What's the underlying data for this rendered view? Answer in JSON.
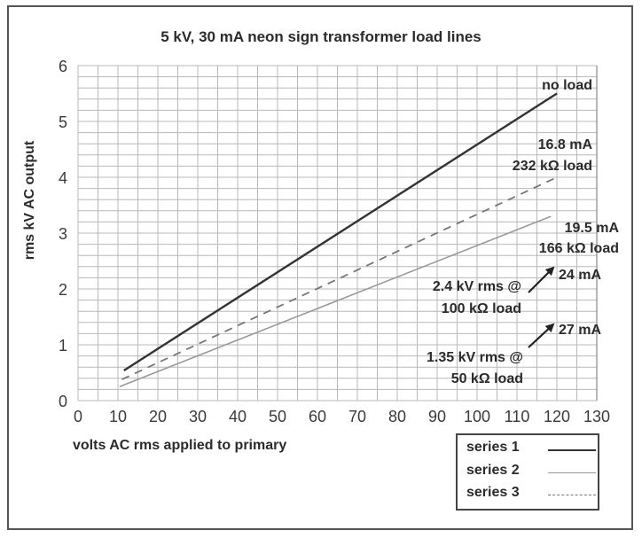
{
  "chart_data": {
    "type": "line",
    "title": "5 kV, 30 mA neon sign transformer load lines",
    "xlabel": "volts AC rms applied to primary",
    "ylabel": "rms kV AC output",
    "xlim": [
      0,
      130
    ],
    "ylim": [
      0,
      6
    ],
    "x_ticks": [
      0,
      10,
      20,
      30,
      40,
      50,
      60,
      70,
      80,
      90,
      100,
      110,
      120,
      130
    ],
    "y_ticks": [
      0,
      1,
      2,
      3,
      4,
      5,
      6
    ],
    "grid": true,
    "grid_minor": {
      "x_step": 5,
      "y_step": 0.2
    },
    "legend_position": "bottom-right",
    "series": [
      {
        "name": "series 1",
        "style": "solid-dark",
        "color": "#333333",
        "x": [
          11.5,
          120
        ],
        "y": [
          0.54,
          5.5
        ],
        "label": "no load"
      },
      {
        "name": "series 2",
        "style": "solid-light",
        "color": "#999999",
        "x": [
          10.4,
          118.5
        ],
        "y": [
          0.25,
          3.3
        ],
        "label": "19.5 mA 166 kΩ load"
      },
      {
        "name": "series 3",
        "style": "dashed",
        "color": "#777777",
        "x": [
          11,
          120
        ],
        "y": [
          0.38,
          4.0
        ],
        "label": "16.8 mA 232 kΩ load"
      }
    ],
    "annotations": [
      {
        "text": "no load",
        "target": "series 1 end"
      },
      {
        "text": "16.8 mA",
        "line2": "232 kΩ load",
        "target": "series 3 end"
      },
      {
        "text": "19.5 mA",
        "line2": "166 kΩ load",
        "target": "series 2 end"
      },
      {
        "text": "2.4 kV rms @",
        "line2": "100 kΩ load",
        "arrow_to": "24 mA"
      },
      {
        "text": "1.35 kV rms @",
        "line2": "50 kΩ load",
        "arrow_to": "27 mA"
      }
    ]
  },
  "labels": {
    "title": "5 kV, 30 mA neon sign transformer load lines",
    "xlabel": "volts AC rms applied to primary",
    "ylabel": "rms kV AC output",
    "no_load": "no load",
    "s3_l1": "16.8 mA",
    "s3_l2": "232 kΩ load",
    "s2_l1": "19.5 mA",
    "s2_l2": "166 kΩ load",
    "a1_l1": "2.4 kV rms @",
    "a1_l2": "100 kΩ load",
    "a1_target": "24 mA",
    "a2_l1": "1.35 kV rms @",
    "a2_l2": "50 kΩ load",
    "a2_target": "27 mA"
  },
  "legend": [
    {
      "label": "series 1"
    },
    {
      "label": "series 2"
    },
    {
      "label": "series 3"
    }
  ]
}
